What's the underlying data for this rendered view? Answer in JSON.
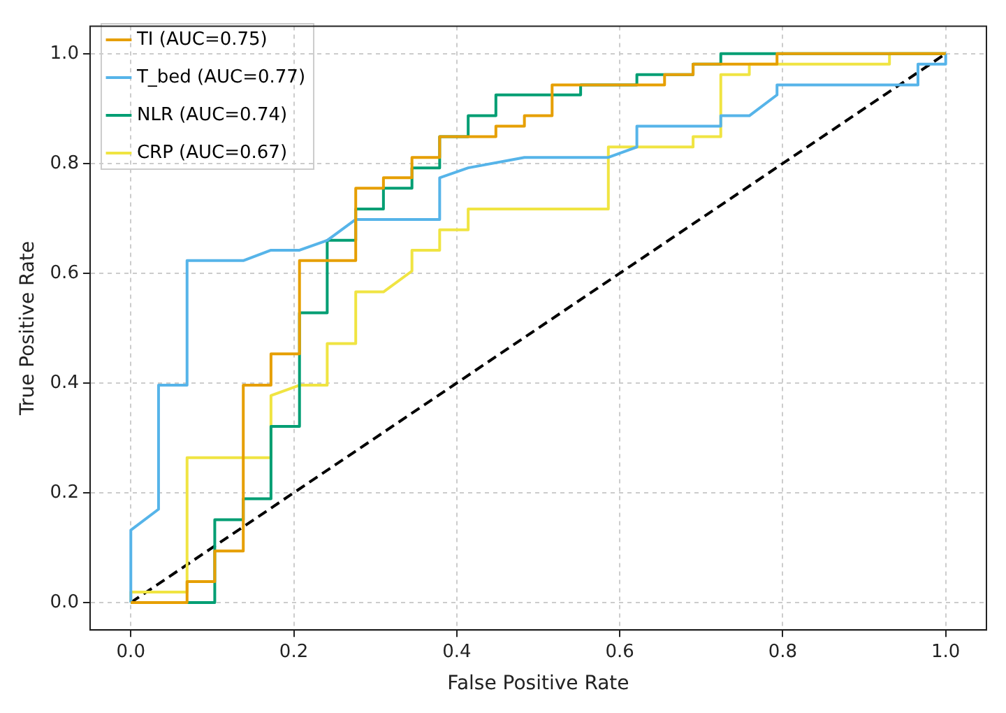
{
  "chart_data": {
    "type": "line",
    "xlabel": "False Positive Rate",
    "ylabel": "True Positive Rate",
    "xlim": [
      -0.05,
      1.05
    ],
    "ylim": [
      -0.05,
      1.05
    ],
    "xticks": [
      {
        "value": 0,
        "label": "0.0"
      },
      0.2,
      0.4,
      0.6,
      0.8,
      {
        "value": 1,
        "label": "1.0"
      }
    ],
    "yticks": [
      {
        "value": 0,
        "label": "0.0"
      },
      0.2,
      0.4,
      0.6,
      0.8,
      {
        "value": 1,
        "label": "1.0"
      }
    ],
    "grid": true,
    "legend": "top left",
    "marker": "none",
    "line_style": "solid",
    "series": [
      {
        "name": "TI (AUC=0.75)",
        "color": "#e69f00",
        "x": [
          0,
          0.069,
          0.069,
          0.103,
          0.103,
          0.138,
          0.138,
          0.172,
          0.172,
          0.207,
          0.207,
          0.276,
          0.276,
          0.31,
          0.31,
          0.345,
          0.345,
          0.379,
          0.379,
          0.448,
          0.448,
          0.483,
          0.483,
          0.517,
          0.517,
          0.655,
          0.655,
          0.69,
          0.69,
          0.793,
          0.793,
          1
        ],
        "values": [
          0,
          0,
          0.038,
          0.038,
          0.094,
          0.094,
          0.396,
          0.396,
          0.453,
          0.453,
          0.623,
          0.623,
          0.755,
          0.755,
          0.774,
          0.774,
          0.811,
          0.811,
          0.849,
          0.849,
          0.868,
          0.868,
          0.887,
          0.887,
          0.943,
          0.943,
          0.962,
          0.962,
          0.981,
          0.981,
          1,
          1
        ]
      },
      {
        "name": "T_bed (AUC=0.77)",
        "color": "#56b4e9",
        "x": [
          0,
          0,
          0.034,
          0.034,
          0.069,
          0.069,
          0.138,
          0.172,
          0.207,
          0.241,
          0.276,
          0.379,
          0.379,
          0.414,
          0.483,
          0.586,
          0.621,
          0.621,
          0.724,
          0.724,
          0.759,
          0.793,
          0.793,
          0.966,
          0.966,
          1,
          1
        ],
        "values": [
          0,
          0.132,
          0.17,
          0.396,
          0.396,
          0.623,
          0.623,
          0.642,
          0.642,
          0.66,
          0.698,
          0.698,
          0.774,
          0.792,
          0.811,
          0.811,
          0.83,
          0.868,
          0.868,
          0.887,
          0.887,
          0.925,
          0.943,
          0.943,
          0.981,
          0.981,
          1
        ]
      },
      {
        "name": "NLR (AUC=0.74)",
        "color": "#009e73",
        "x": [
          0,
          0.103,
          0.103,
          0.138,
          0.138,
          0.172,
          0.172,
          0.207,
          0.207,
          0.241,
          0.241,
          0.276,
          0.276,
          0.31,
          0.31,
          0.345,
          0.345,
          0.379,
          0.379,
          0.414,
          0.414,
          0.448,
          0.448,
          0.552,
          0.552,
          0.621,
          0.621,
          0.69,
          0.69,
          0.724,
          0.724,
          1
        ],
        "values": [
          0,
          0,
          0.151,
          0.151,
          0.189,
          0.189,
          0.321,
          0.321,
          0.528,
          0.528,
          0.66,
          0.66,
          0.717,
          0.717,
          0.755,
          0.755,
          0.792,
          0.792,
          0.849,
          0.849,
          0.887,
          0.887,
          0.925,
          0.925,
          0.943,
          0.943,
          0.962,
          0.962,
          0.981,
          0.981,
          1,
          1
        ]
      },
      {
        "name": "CRP (AUC=0.67)",
        "color": "#f0e442",
        "x": [
          0,
          0,
          0.069,
          0.069,
          0.172,
          0.172,
          0.207,
          0.241,
          0.241,
          0.276,
          0.276,
          0.31,
          0.345,
          0.345,
          0.379,
          0.379,
          0.414,
          0.414,
          0.586,
          0.586,
          0.69,
          0.69,
          0.724,
          0.724,
          0.759,
          0.759,
          0.931,
          0.931,
          1
        ],
        "values": [
          0,
          0.019,
          0.019,
          0.264,
          0.264,
          0.377,
          0.396,
          0.396,
          0.472,
          0.472,
          0.566,
          0.566,
          0.604,
          0.642,
          0.642,
          0.679,
          0.679,
          0.717,
          0.717,
          0.83,
          0.83,
          0.849,
          0.849,
          0.962,
          0.962,
          0.981,
          0.981,
          1,
          1
        ]
      },
      {
        "color": "#000000",
        "line_style": "dashed",
        "x": [
          0,
          1
        ],
        "values": [
          0,
          1
        ]
      }
    ]
  }
}
